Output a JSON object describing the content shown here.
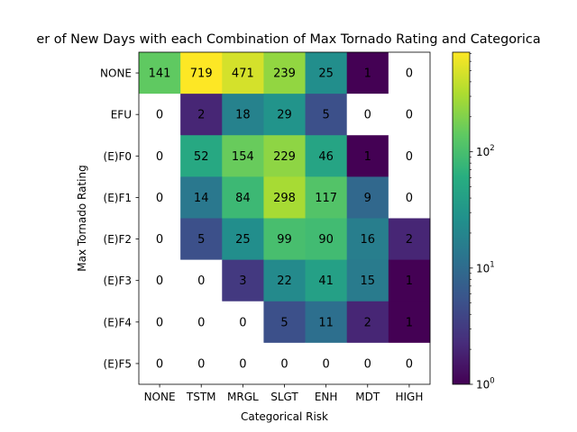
{
  "chart_data": {
    "type": "heatmap",
    "title": "er of New Days with each Combination of Max Tornado Rating and Categorica",
    "xlabel": "Categorical Risk",
    "ylabel": "Max Tornado Rating",
    "x_categories": [
      "NONE",
      "TSTM",
      "MRGL",
      "SLGT",
      "ENH",
      "MDT",
      "HIGH"
    ],
    "y_categories": [
      "NONE",
      "EFU",
      "(E)F0",
      "(E)F1",
      "(E)F2",
      "(E)F3",
      "(E)F4",
      "(E)F5"
    ],
    "values": [
      [
        141,
        719,
        471,
        239,
        25,
        1,
        0
      ],
      [
        0,
        2,
        18,
        29,
        5,
        0,
        0
      ],
      [
        0,
        52,
        154,
        229,
        46,
        1,
        0
      ],
      [
        0,
        14,
        84,
        298,
        117,
        9,
        0
      ],
      [
        0,
        5,
        25,
        99,
        90,
        16,
        2
      ],
      [
        0,
        0,
        3,
        22,
        41,
        15,
        1
      ],
      [
        0,
        0,
        0,
        5,
        11,
        2,
        1
      ],
      [
        0,
        0,
        0,
        0,
        0,
        0,
        0
      ]
    ],
    "color_scale": "log",
    "colormap": "viridis",
    "zero_color": "#ffffff",
    "vmin": 1,
    "vmax": 719,
    "colorbar": {
      "ticks": [
        {
          "value": 1,
          "base": "10",
          "exp": "0"
        },
        {
          "value": 10,
          "base": "10",
          "exp": "1"
        },
        {
          "value": 100,
          "base": "10",
          "exp": "2"
        }
      ]
    }
  }
}
